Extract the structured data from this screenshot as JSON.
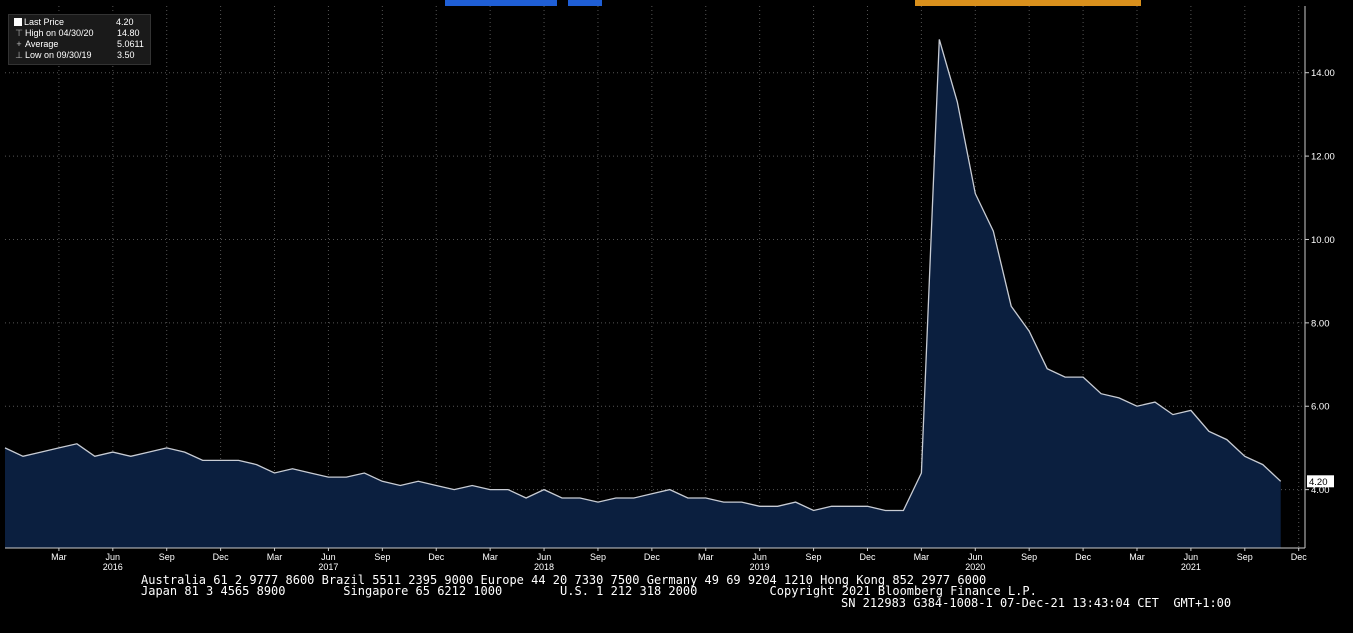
{
  "legend": {
    "items": [
      {
        "label": "Last Price",
        "value": "4.20"
      },
      {
        "label": "High on 04/30/20",
        "value": "14.80"
      },
      {
        "label": "Average",
        "value": "5.0611"
      },
      {
        "label": "Low on 09/30/19",
        "value": "3.50"
      }
    ]
  },
  "chart_data": {
    "type": "area",
    "x": [
      "2015-12",
      "2016-01",
      "2016-02",
      "2016-03",
      "2016-04",
      "2016-05",
      "2016-06",
      "2016-07",
      "2016-08",
      "2016-09",
      "2016-10",
      "2016-11",
      "2016-12",
      "2017-01",
      "2017-02",
      "2017-03",
      "2017-04",
      "2017-05",
      "2017-06",
      "2017-07",
      "2017-08",
      "2017-09",
      "2017-10",
      "2017-11",
      "2017-12",
      "2018-01",
      "2018-02",
      "2018-03",
      "2018-04",
      "2018-05",
      "2018-06",
      "2018-07",
      "2018-08",
      "2018-09",
      "2018-10",
      "2018-11",
      "2018-12",
      "2019-01",
      "2019-02",
      "2019-03",
      "2019-04",
      "2019-05",
      "2019-06",
      "2019-07",
      "2019-08",
      "2019-09",
      "2019-10",
      "2019-11",
      "2019-12",
      "2020-01",
      "2020-02",
      "2020-03",
      "2020-04",
      "2020-05",
      "2020-06",
      "2020-07",
      "2020-08",
      "2020-09",
      "2020-10",
      "2020-11",
      "2020-12",
      "2021-01",
      "2021-02",
      "2021-03",
      "2021-04",
      "2021-05",
      "2021-06",
      "2021-07",
      "2021-08",
      "2021-09",
      "2021-10",
      "2021-11"
    ],
    "series": [
      {
        "values": [
          5.0,
          4.8,
          4.9,
          5.0,
          5.1,
          4.8,
          4.9,
          4.8,
          4.9,
          5.0,
          4.9,
          4.7,
          4.7,
          4.7,
          4.6,
          4.4,
          4.5,
          4.4,
          4.3,
          4.3,
          4.4,
          4.2,
          4.1,
          4.2,
          4.1,
          4.0,
          4.1,
          4.0,
          4.0,
          3.8,
          4.0,
          3.8,
          3.8,
          3.7,
          3.8,
          3.8,
          3.9,
          4.0,
          3.8,
          3.8,
          3.7,
          3.7,
          3.6,
          3.6,
          3.7,
          3.5,
          3.6,
          3.6,
          3.6,
          3.5,
          3.5,
          4.4,
          14.8,
          13.3,
          11.1,
          10.2,
          8.4,
          7.8,
          6.9,
          6.7,
          6.7,
          6.3,
          6.2,
          6.0,
          6.1,
          5.8,
          5.9,
          5.4,
          5.2,
          4.8,
          4.6,
          4.2
        ]
      }
    ],
    "y_ticks": [
      "4.00",
      "6.00",
      "8.00",
      "10.00",
      "12.00",
      "14.00"
    ],
    "ylim": [
      2.6,
      15.6
    ],
    "x_ticks": [
      {
        "at": "2016-03",
        "label": "Mar"
      },
      {
        "at": "2016-06",
        "label": "Jun",
        "year": "2016"
      },
      {
        "at": "2016-09",
        "label": "Sep"
      },
      {
        "at": "2016-12",
        "label": "Dec"
      },
      {
        "at": "2017-03",
        "label": "Mar"
      },
      {
        "at": "2017-06",
        "label": "Jun",
        "year": "2017"
      },
      {
        "at": "2017-09",
        "label": "Sep"
      },
      {
        "at": "2017-12",
        "label": "Dec"
      },
      {
        "at": "2018-03",
        "label": "Mar"
      },
      {
        "at": "2018-06",
        "label": "Jun",
        "year": "2018"
      },
      {
        "at": "2018-09",
        "label": "Sep"
      },
      {
        "at": "2018-12",
        "label": "Dec"
      },
      {
        "at": "2019-03",
        "label": "Mar"
      },
      {
        "at": "2019-06",
        "label": "Jun",
        "year": "2019"
      },
      {
        "at": "2019-09",
        "label": "Sep"
      },
      {
        "at": "2019-12",
        "label": "Dec"
      },
      {
        "at": "2020-03",
        "label": "Mar"
      },
      {
        "at": "2020-06",
        "label": "Jun",
        "year": "2020"
      },
      {
        "at": "2020-09",
        "label": "Sep"
      },
      {
        "at": "2020-12",
        "label": "Dec"
      },
      {
        "at": "2021-03",
        "label": "Mar"
      },
      {
        "at": "2021-06",
        "label": "Jun",
        "year": "2021"
      },
      {
        "at": "2021-09",
        "label": "Sep"
      },
      {
        "at": "2021-12",
        "label": "Dec"
      }
    ],
    "last_price_label": "4.20",
    "grid": true,
    "colors": {
      "fill": "#0b1f3f",
      "line": "#c8ccd4",
      "grid": "#555555",
      "last_label_bg": "#ffffff"
    }
  },
  "footer": {
    "line1": "Australia 61 2 9777 8600 Brazil 5511 2395 9000 Europe 44 20 7330 7500 Germany 49 69 9204 1210 Hong Kong 852 2977 6000",
    "line2": "Japan 81 3 4565 8900        Singapore 65 6212 1000        U.S. 1 212 318 2000          Copyright 2021 Bloomberg Finance L.P.",
    "line3": "SN 212983 G384-1008-1 07-Dec-21 13:43:04 CET  GMT+1:00"
  },
  "topbar_colors": {
    "blue": "#1f5fd6",
    "orange": "#d9901c"
  }
}
